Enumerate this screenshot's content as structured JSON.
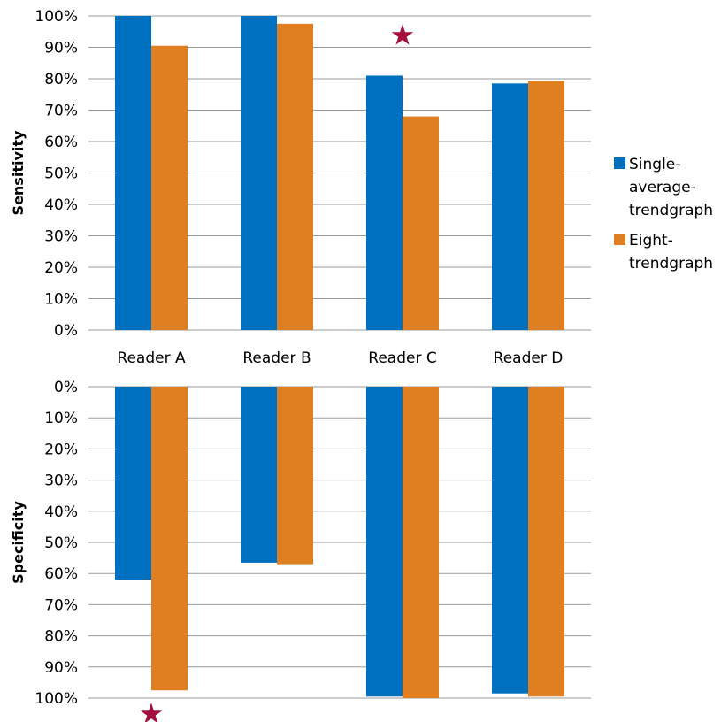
{
  "colors": {
    "series1": "#0070C0",
    "series2": "#E07E22",
    "star": "#A50F3C",
    "grid": "#9A9A9A"
  },
  "legend": {
    "position": "right",
    "items": [
      {
        "lines": [
          "Single-",
          "average-",
          "trendgraph"
        ]
      },
      {
        "lines": [
          "Eight-",
          "trendgraph"
        ]
      }
    ]
  },
  "chart_data": [
    {
      "type": "bar",
      "ylabel": "Sensitivity",
      "categories": [
        "Reader A",
        "Reader B",
        "Reader C",
        "Reader D"
      ],
      "series": [
        {
          "name": "Single-average-trendgraph",
          "values": [
            1.0,
            1.0,
            0.81,
            0.785
          ]
        },
        {
          "name": "Eight-trendgraph",
          "values": [
            0.905,
            0.975,
            0.68,
            0.793
          ]
        }
      ],
      "ylim": [
        0,
        1
      ],
      "yticks": [
        "0%",
        "10%",
        "20%",
        "30%",
        "40%",
        "50%",
        "60%",
        "70%",
        "80%",
        "90%",
        "100%"
      ],
      "grid": true,
      "star_marker": {
        "category": "Reader C",
        "value": 0.94,
        "symbol": "★"
      }
    },
    {
      "type": "bar",
      "ylabel": "Specificity",
      "inverted_axis": true,
      "categories": [
        "Reader A",
        "Reader B",
        "Reader C",
        "Reader D"
      ],
      "series": [
        {
          "name": "Single-average-trendgraph",
          "values": [
            0.62,
            0.565,
            0.995,
            0.985
          ]
        },
        {
          "name": "Eight-trendgraph",
          "values": [
            0.975,
            0.57,
            1.0,
            0.995
          ]
        }
      ],
      "ylim": [
        0,
        1
      ],
      "yticks": [
        "0%",
        "10%",
        "20%",
        "30%",
        "40%",
        "50%",
        "60%",
        "70%",
        "80%",
        "90%",
        "100%"
      ],
      "grid": true,
      "star_marker": {
        "category": "Reader A",
        "value": 1.05,
        "symbol": "★"
      }
    }
  ]
}
